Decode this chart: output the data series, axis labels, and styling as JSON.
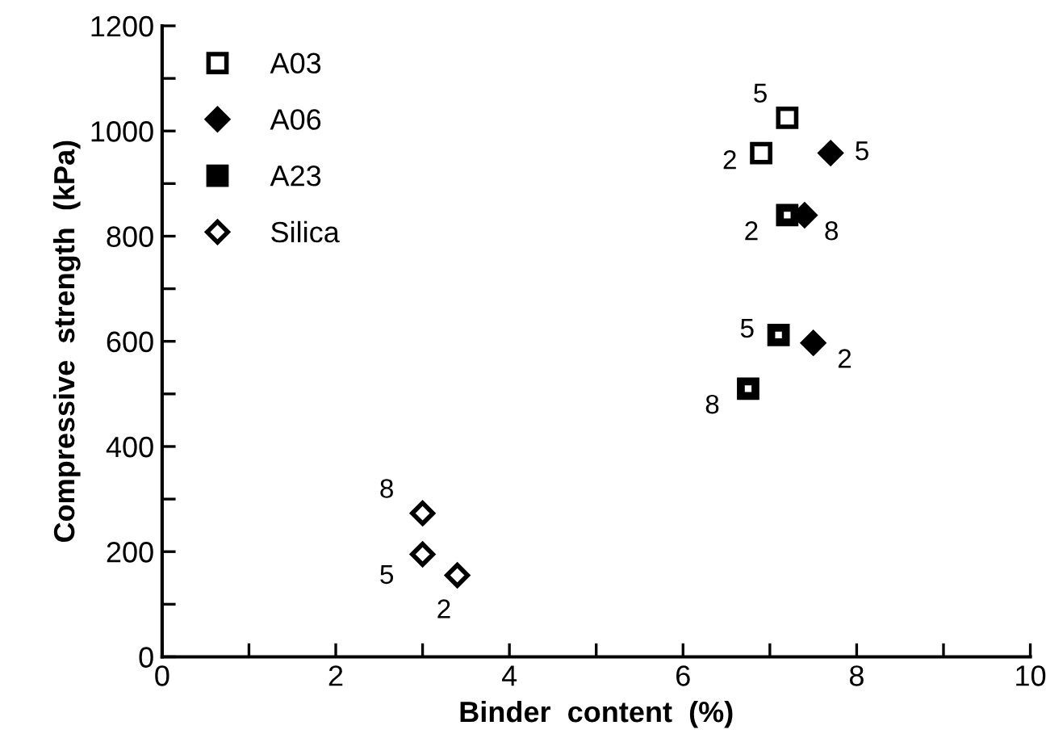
{
  "chart_data": {
    "type": "scatter",
    "xlabel": "Binder  content  (%)",
    "ylabel": "Compressive  strength  (kPa)",
    "xlim": [
      0,
      10
    ],
    "ylim": [
      0,
      1200
    ],
    "xticks": [
      0,
      {
        "value": 1,
        "label": null
      },
      2,
      {
        "value": 3,
        "label": null
      },
      4,
      {
        "value": 5,
        "label": null
      },
      6,
      {
        "value": 7,
        "label": null
      },
      8,
      {
        "value": 9,
        "label": null
      },
      10
    ],
    "yticks": [
      0,
      {
        "value": 100,
        "label": null
      },
      200,
      {
        "value": 300,
        "label": null
      },
      400,
      {
        "value": 500,
        "label": null
      },
      600,
      {
        "value": 700,
        "label": null
      },
      800,
      {
        "value": 900,
        "label": null
      },
      1000,
      {
        "value": 1100,
        "label": null
      },
      1200
    ],
    "grid": false,
    "legend": "top left",
    "series": [
      {
        "name": "A03",
        "color": "#000000",
        "marker": "square",
        "x": [
          7.2,
          6.9
        ],
        "values": [
          1025,
          958
        ]
      },
      {
        "name": "A06",
        "color": "#000000",
        "marker": "diamond",
        "x": [
          7.7,
          7.4,
          7.5
        ],
        "values": [
          958,
          840,
          597
        ]
      },
      {
        "name": "A23",
        "color": "#000000",
        "marker": "square",
        "x": [
          7.2,
          7.1,
          6.75
        ],
        "values": [
          840,
          612,
          510
        ]
      },
      {
        "name": "Silica",
        "color": "#000000",
        "marker": "diamond",
        "x": [
          3.0,
          3.0,
          3.4
        ],
        "values": [
          273,
          195,
          155
        ]
      }
    ],
    "annotations": [
      {
        "text": "5",
        "x": 7.2,
        "y": 1025
      },
      {
        "text": "2",
        "x": 6.9,
        "y": 958
      },
      {
        "text": "5",
        "x": 7.7,
        "y": 958
      },
      {
        "text": "8",
        "x": 7.4,
        "y": 840
      },
      {
        "text": "2",
        "x": 7.5,
        "y": 597
      },
      {
        "text": "2",
        "x": 7.2,
        "y": 840
      },
      {
        "text": "5",
        "x": 7.1,
        "y": 612
      },
      {
        "text": "8",
        "x": 6.75,
        "y": 510
      },
      {
        "text": "8",
        "x": 3.0,
        "y": 273
      },
      {
        "text": "5",
        "x": 3.0,
        "y": 195
      },
      {
        "text": "2",
        "x": 3.4,
        "y": 155
      }
    ]
  }
}
